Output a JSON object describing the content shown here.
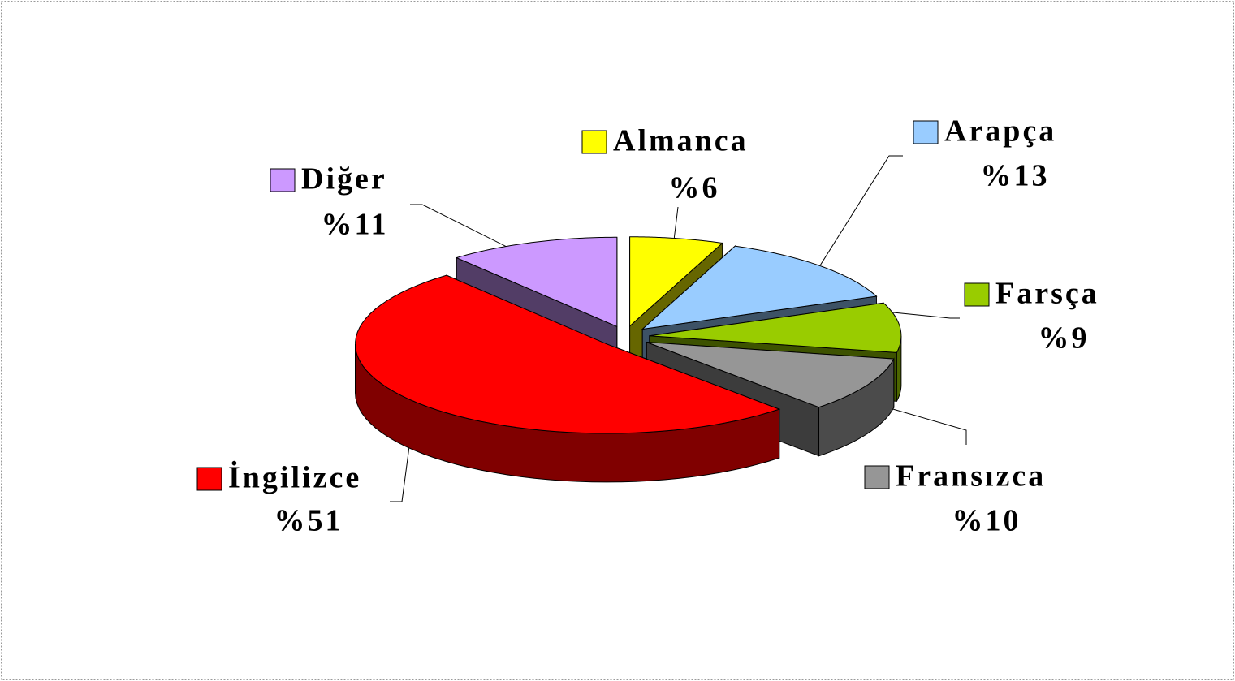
{
  "chart_data": {
    "type": "pie3d",
    "categories": [
      "Almanca",
      "Arapça",
      "Farsça",
      "Fransızca",
      "İngilizce",
      "Diğer"
    ],
    "values": [
      6,
      13,
      9,
      10,
      51,
      11
    ],
    "value_labels": [
      "%6",
      "%13",
      "%9",
      "%10",
      "%51",
      "%11"
    ],
    "colors": [
      "#ffff00",
      "#99ccff",
      "#99cc00",
      "#969696",
      "#ff0000",
      "#cc99ff"
    ]
  }
}
